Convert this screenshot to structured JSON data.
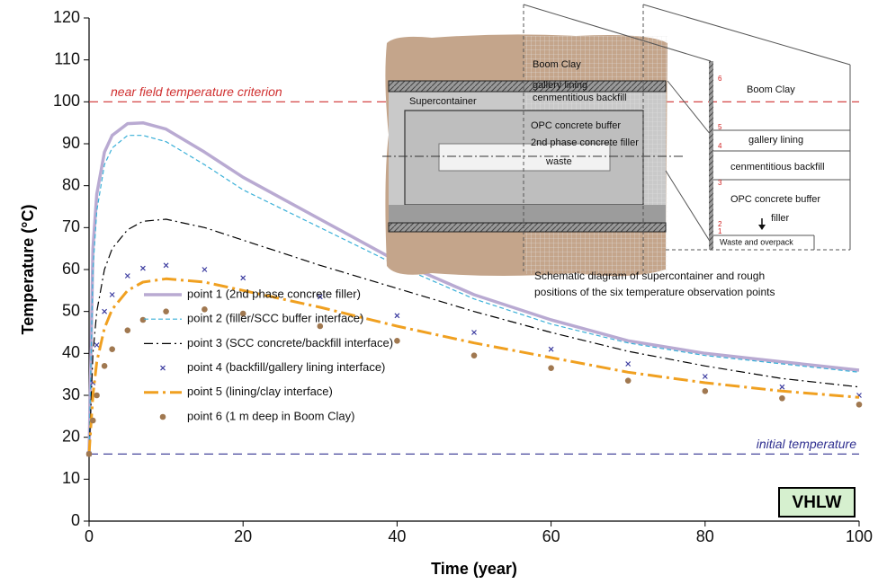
{
  "chart_data": {
    "type": "line",
    "x_label": "Time (year)",
    "y_label": "Temperature (°C)",
    "x": [
      0,
      0.5,
      1,
      2,
      3,
      5,
      7,
      10,
      15,
      20,
      30,
      40,
      50,
      60,
      70,
      80,
      90,
      100
    ],
    "series": [
      {
        "name": "point 1 (2nd phase concrete filler)",
        "color": "#b9aad2",
        "line_style": "solid",
        "width": 3.5,
        "values": [
          16,
          65,
          78,
          88,
          92,
          94.8,
          95,
          93.5,
          88,
          82,
          72,
          62,
          54,
          48,
          43,
          40,
          38,
          36
        ]
      },
      {
        "name": "point 2 (filler/SCC buffer interface)",
        "color": "#3ab0d8",
        "line_style": "dashed",
        "width": 1.2,
        "values": [
          16,
          60,
          74,
          85,
          89,
          92,
          92,
          90.5,
          85,
          79,
          70,
          61,
          53,
          47,
          42.5,
          39.5,
          37.5,
          35.5
        ]
      },
      {
        "name": "point 3 (SCC concrete/backfill interface)",
        "color": "#000000",
        "line_style": "dashdot",
        "width": 1.2,
        "values": [
          16,
          40,
          50,
          60,
          65,
          69.5,
          71.5,
          72,
          70,
          67,
          61,
          55.5,
          50,
          45,
          40.5,
          37,
          34,
          32
        ]
      },
      {
        "name": "point 4 (backfill/gallery lining interface)",
        "color": "#3c3ca0",
        "marker": "x",
        "values": [
          16,
          33,
          42,
          50,
          54,
          58.5,
          60.3,
          61,
          60,
          58,
          53.5,
          49,
          45,
          41,
          37.5,
          34.5,
          32,
          30
        ]
      },
      {
        "name": "point 5 (lining/clay interface)",
        "color": "#f0a020",
        "line_style": "longdashdot",
        "width": 3,
        "values": [
          16,
          30,
          38,
          46,
          50.5,
          55,
          57,
          57.8,
          57,
          55,
          51,
          46.5,
          42.5,
          39,
          35.5,
          33,
          31,
          29.5
        ]
      },
      {
        "name": "point 6 (1 m deep in Boom Clay)",
        "color": "#a07850",
        "marker": "circle",
        "values": [
          16,
          24,
          30,
          37,
          41,
          45.5,
          48,
          50,
          50.5,
          49.5,
          46.5,
          43,
          39.5,
          36.5,
          33.5,
          31,
          29.3,
          27.8
        ]
      }
    ],
    "xlim": [
      0,
      100
    ],
    "xticks": [
      0,
      20,
      40,
      60,
      80,
      100
    ],
    "ylim": [
      0,
      120
    ],
    "yticks": [
      0,
      10,
      20,
      30,
      40,
      50,
      60,
      70,
      80,
      90,
      100,
      110,
      120
    ],
    "legend": "lower left",
    "annotations": [
      {
        "text": "near field temperature criterion",
        "y": 100,
        "color": "#d03030"
      },
      {
        "text": "initial temperature",
        "y": 16,
        "color": "#303090"
      }
    ],
    "box_label": "VHLW",
    "inset": {
      "left_labels": [
        "Boom Clay",
        "gallery lining",
        "cenmentitious backfill",
        "Supercontainer",
        "OPC concrete buffer",
        "2nd phase concrete filler",
        "waste"
      ],
      "right_labels": [
        "Boom Clay",
        "gallery lining",
        "cenmentitious backfill",
        "OPC concrete buffer",
        "filler",
        "Waste and overpack"
      ],
      "points": [
        "6",
        "5",
        "4",
        "3",
        "2",
        "1"
      ],
      "caption": [
        "Schematic diagram of supercontainer and rough",
        "positions of the six temperature observation points"
      ]
    }
  }
}
